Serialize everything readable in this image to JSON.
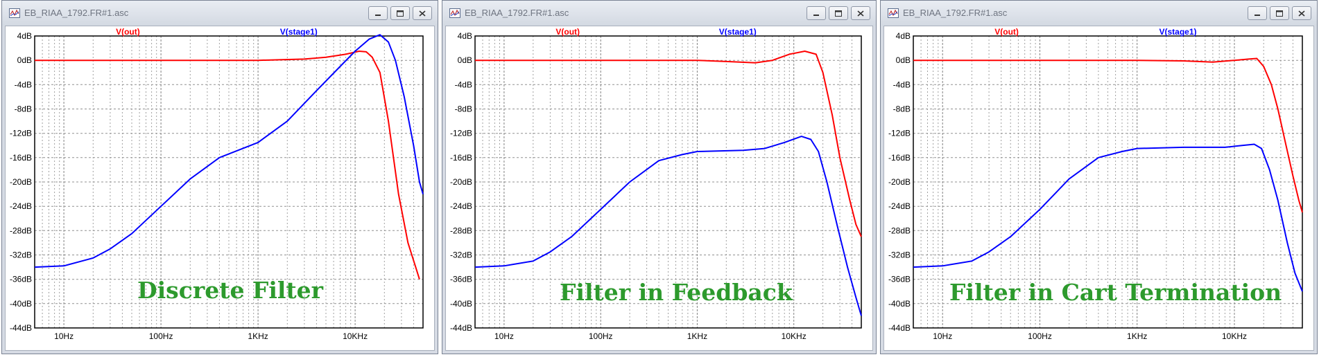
{
  "windows": [
    {
      "title": "EB_RIAA_1792.FR#1.asc",
      "overlay_label": "Discrete Filter",
      "chart": {
        "type": "line",
        "xlabel": "",
        "ylabel": "",
        "x_scale": "log",
        "xlim": [
          5,
          50000
        ],
        "ylim": [
          -44,
          4
        ],
        "y_ticks": [
          "4dB",
          "0dB",
          "-4dB",
          "-8dB",
          "-12dB",
          "-16dB",
          "-20dB",
          "-24dB",
          "-28dB",
          "-32dB",
          "-36dB",
          "-40dB",
          "-44dB"
        ],
        "x_ticks": [
          {
            "value": 10,
            "label": "10Hz"
          },
          {
            "value": 100,
            "label": "100Hz"
          },
          {
            "value": 1000,
            "label": "1KHz"
          },
          {
            "value": 10000,
            "label": "10KHz"
          }
        ],
        "grid": true,
        "legend": "top",
        "series": [
          {
            "name": "V(out)",
            "color": "#ff0000",
            "points": [
              [
                5,
                0
              ],
              [
                100,
                0
              ],
              [
                1000,
                0
              ],
              [
                3000,
                0.2
              ],
              [
                5000,
                0.5
              ],
              [
                8000,
                1
              ],
              [
                11000,
                1.5
              ],
              [
                13000,
                1.4
              ],
              [
                15000,
                0.5
              ],
              [
                18000,
                -2
              ],
              [
                22000,
                -10
              ],
              [
                28000,
                -22
              ],
              [
                35000,
                -30
              ],
              [
                42000,
                -34
              ],
              [
                46000,
                -36
              ]
            ]
          },
          {
            "name": "V(stage1)",
            "color": "#0000ff",
            "points": [
              [
                5,
                -34
              ],
              [
                10,
                -33.8
              ],
              [
                20,
                -32.5
              ],
              [
                30,
                -31
              ],
              [
                50,
                -28.5
              ],
              [
                100,
                -24
              ],
              [
                200,
                -19.5
              ],
              [
                400,
                -16
              ],
              [
                1000,
                -13.5
              ],
              [
                2000,
                -10
              ],
              [
                4000,
                -5
              ],
              [
                7000,
                -1
              ],
              [
                10000,
                1.5
              ],
              [
                14000,
                3.5
              ],
              [
                18000,
                4.2
              ],
              [
                22000,
                3
              ],
              [
                26000,
                0
              ],
              [
                32000,
                -6
              ],
              [
                40000,
                -14
              ],
              [
                46000,
                -20
              ],
              [
                50000,
                -22
              ]
            ]
          }
        ]
      }
    },
    {
      "title": "EB_RIAA_1792.FR#1.asc",
      "overlay_label": "Filter in Feedback",
      "chart": {
        "type": "line",
        "xlabel": "",
        "ylabel": "",
        "x_scale": "log",
        "xlim": [
          5,
          50000
        ],
        "ylim": [
          -44,
          4
        ],
        "y_ticks": [
          "4dB",
          "0dB",
          "-4dB",
          "-8dB",
          "-12dB",
          "-16dB",
          "-20dB",
          "-24dB",
          "-28dB",
          "-32dB",
          "-36dB",
          "-40dB",
          "-44dB"
        ],
        "x_ticks": [
          {
            "value": 10,
            "label": "10Hz"
          },
          {
            "value": 100,
            "label": "100Hz"
          },
          {
            "value": 1000,
            "label": "1KHz"
          },
          {
            "value": 10000,
            "label": "10KHz"
          }
        ],
        "grid": true,
        "legend": "top",
        "series": [
          {
            "name": "V(out)",
            "color": "#ff0000",
            "points": [
              [
                5,
                0
              ],
              [
                100,
                0
              ],
              [
                1000,
                0
              ],
              [
                2000,
                -0.2
              ],
              [
                4000,
                -0.4
              ],
              [
                6000,
                0
              ],
              [
                9000,
                1
              ],
              [
                13000,
                1.5
              ],
              [
                17000,
                1
              ],
              [
                20000,
                -2
              ],
              [
                25000,
                -9
              ],
              [
                30000,
                -16
              ],
              [
                38000,
                -23
              ],
              [
                44000,
                -27
              ],
              [
                50000,
                -29
              ]
            ]
          },
          {
            "name": "V(stage1)",
            "color": "#0000ff",
            "points": [
              [
                5,
                -34
              ],
              [
                10,
                -33.8
              ],
              [
                20,
                -33
              ],
              [
                30,
                -31.5
              ],
              [
                50,
                -29
              ],
              [
                100,
                -24.5
              ],
              [
                200,
                -20
              ],
              [
                400,
                -16.5
              ],
              [
                700,
                -15.5
              ],
              [
                1000,
                -15
              ],
              [
                3000,
                -14.8
              ],
              [
                5000,
                -14.5
              ],
              [
                8000,
                -13.5
              ],
              [
                12000,
                -12.5
              ],
              [
                15000,
                -13
              ],
              [
                18000,
                -15
              ],
              [
                22000,
                -20
              ],
              [
                28000,
                -27
              ],
              [
                36000,
                -34
              ],
              [
                44000,
                -39
              ],
              [
                50000,
                -42
              ]
            ]
          }
        ]
      }
    },
    {
      "title": "EB_RIAA_1792.FR#1.asc",
      "overlay_label": "Filter in Cart Termination",
      "chart": {
        "type": "line",
        "xlabel": "",
        "ylabel": "",
        "x_scale": "log",
        "xlim": [
          5,
          50000
        ],
        "ylim": [
          -44,
          4
        ],
        "y_ticks": [
          "4dB",
          "0dB",
          "-4dB",
          "-8dB",
          "-12dB",
          "-16dB",
          "-20dB",
          "-24dB",
          "-28dB",
          "-32dB",
          "-36dB",
          "-40dB",
          "-44dB"
        ],
        "x_ticks": [
          {
            "value": 10,
            "label": "10Hz"
          },
          {
            "value": 100,
            "label": "100Hz"
          },
          {
            "value": 1000,
            "label": "1KHz"
          },
          {
            "value": 10000,
            "label": "10KHz"
          }
        ],
        "grid": true,
        "legend": "top",
        "series": [
          {
            "name": "V(out)",
            "color": "#ff0000",
            "points": [
              [
                5,
                0
              ],
              [
                100,
                0
              ],
              [
                1000,
                0
              ],
              [
                3000,
                -0.1
              ],
              [
                6000,
                -0.3
              ],
              [
                10000,
                0
              ],
              [
                14000,
                0.2
              ],
              [
                17000,
                0.3
              ],
              [
                20000,
                -1
              ],
              [
                24000,
                -4
              ],
              [
                28000,
                -8
              ],
              [
                34000,
                -14
              ],
              [
                40000,
                -19
              ],
              [
                46000,
                -23
              ],
              [
                50000,
                -25
              ]
            ]
          },
          {
            "name": "V(stage1)",
            "color": "#0000ff",
            "points": [
              [
                5,
                -34
              ],
              [
                10,
                -33.8
              ],
              [
                20,
                -33
              ],
              [
                30,
                -31.5
              ],
              [
                50,
                -29
              ],
              [
                100,
                -24.5
              ],
              [
                200,
                -19.5
              ],
              [
                400,
                -16
              ],
              [
                700,
                -15
              ],
              [
                1000,
                -14.5
              ],
              [
                3000,
                -14.3
              ],
              [
                8000,
                -14.3
              ],
              [
                12000,
                -14
              ],
              [
                16000,
                -13.8
              ],
              [
                19000,
                -14.5
              ],
              [
                23000,
                -18
              ],
              [
                28000,
                -23
              ],
              [
                35000,
                -30
              ],
              [
                42000,
                -35
              ],
              [
                50000,
                -38
              ]
            ]
          }
        ]
      }
    }
  ]
}
